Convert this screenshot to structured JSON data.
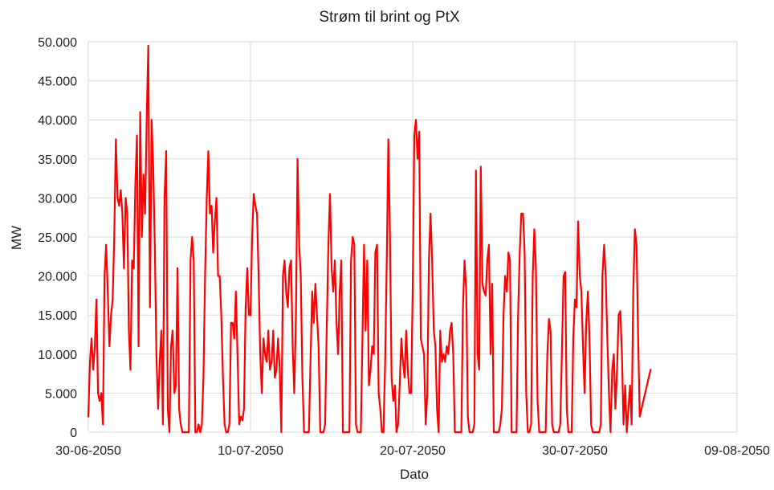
{
  "chart_data": {
    "type": "line",
    "title": "Strøm til brint og PtX",
    "xlabel": "Dato",
    "ylabel": "MW",
    "ylim": [
      0,
      50000
    ],
    "yticks": [
      0,
      5000,
      10000,
      15000,
      20000,
      25000,
      30000,
      35000,
      40000,
      45000,
      50000
    ],
    "ytick_labels": [
      "0",
      "5.000",
      "10.000",
      "15.000",
      "20.000",
      "25.000",
      "30.000",
      "35.000",
      "40.000",
      "45.000",
      "50.000"
    ],
    "xlim": [
      "30-06-2050",
      "09-08-2050"
    ],
    "xticks": [
      "30-06-2050",
      "10-07-2050",
      "20-07-2050",
      "30-07-2050",
      "09-08-2050"
    ],
    "grid": true,
    "colors": {
      "series": "#ff0000",
      "grid": "#d9d9d9"
    },
    "series": [
      {
        "x": [
          "30-06-2050",
          "01-07-2050",
          "02-07-2050",
          "03-07-2050",
          "04-07-2050",
          "05-07-2050",
          "06-07-2050",
          "07-07-2050",
          "08-07-2050",
          "09-07-2050",
          "10-07-2050",
          "11-07-2050",
          "12-07-2050",
          "13-07-2050",
          "14-07-2050",
          "15-07-2050",
          "16-07-2050",
          "17-07-2050",
          "18-07-2050",
          "19-07-2050",
          "20-07-2050",
          "21-07-2050",
          "22-07-2050",
          "23-07-2050",
          "24-07-2050",
          "25-07-2050",
          "26-07-2050",
          "27-07-2050",
          "28-07-2050",
          "29-07-2050",
          "30-07-2050",
          "31-07-2050",
          "01-08-2050",
          "02-08-2050",
          "03-08-2050",
          "04-08-2050",
          "05-08-2050",
          "06-08-2050",
          "07-08-2050",
          "08-08-2050",
          "09-08-2050"
        ],
        "y_profile": [
          [
            2000,
            9000,
            12000,
            8000,
            11000,
            17000,
            5000,
            4000,
            5000,
            1000
          ],
          [
            20000,
            24000,
            18000,
            11000,
            15000,
            17000,
            25000,
            37500,
            30000,
            29000
          ],
          [
            31000,
            28000,
            21000,
            30000,
            28000,
            13000,
            8000,
            22000,
            21000,
            32000
          ],
          [
            38000,
            11000,
            41000,
            25000,
            33000,
            28000,
            40000,
            49500,
            16000,
            40000
          ],
          [
            34000,
            24000,
            10000,
            3000,
            9000,
            13000,
            1000,
            30000,
            36000,
            3000
          ],
          [
            0,
            11000,
            13000,
            5000,
            6000,
            21000,
            3000,
            1000,
            0,
            0
          ],
          [
            0,
            0,
            0,
            22000,
            25000,
            22000,
            0,
            0,
            1000,
            0
          ],
          [
            1000,
            7000,
            20000,
            30000,
            36000,
            28000,
            29000,
            23000,
            27000,
            30000
          ],
          [
            20000,
            20000,
            15000,
            7000,
            1000,
            0,
            0,
            1000,
            14000,
            14000
          ],
          [
            12000,
            18000,
            10000,
            1000,
            2000,
            1500,
            3000,
            16000,
            21000,
            15000
          ],
          [
            15000,
            25000,
            30500,
            29000,
            28000,
            20000,
            10000,
            5000,
            12000,
            10000
          ],
          [
            9000,
            13000,
            8000,
            9000,
            13000,
            7000,
            8000,
            12000,
            8000,
            0
          ],
          [
            20000,
            22000,
            18000,
            16000,
            21000,
            22000,
            11000,
            5000,
            15000,
            35000
          ],
          [
            24000,
            20000,
            7000,
            0,
            0,
            0,
            0,
            9000,
            18000,
            14000
          ],
          [
            19000,
            15000,
            11000,
            0,
            0,
            0,
            1000,
            13000,
            24000,
            30500
          ],
          [
            21000,
            18000,
            22000,
            14000,
            10000,
            18000,
            22000,
            0,
            0,
            0
          ],
          [
            0,
            0,
            22000,
            25000,
            24000,
            1000,
            0,
            0,
            0,
            12000
          ],
          [
            24000,
            13000,
            22000,
            6000,
            8000,
            11000,
            10000,
            23000,
            24000,
            5000
          ],
          [
            3000,
            0,
            0,
            9000,
            22000,
            37500,
            25000,
            7000,
            4000,
            6000
          ],
          [
            0,
            1000,
            6000,
            12000,
            9000,
            7000,
            13000,
            8000,
            5000,
            5000
          ],
          [
            18000,
            38000,
            40000,
            35000,
            38500,
            12000,
            11000,
            10000,
            1000,
            5000
          ],
          [
            22000,
            28000,
            22000,
            13000,
            11000,
            3000,
            0,
            13000,
            9000,
            10000
          ],
          [
            9000,
            11000,
            10000,
            13000,
            14000,
            10000,
            0,
            0,
            0,
            0
          ],
          [
            0,
            16000,
            22000,
            18000,
            2000,
            0,
            0,
            0,
            1000,
            33500
          ],
          [
            10000,
            8000,
            34000,
            19000,
            18000,
            17500,
            22000,
            24000,
            10000,
            19000
          ],
          [
            0,
            0,
            0,
            0,
            1000,
            3000,
            15000,
            20000,
            18000,
            23000
          ],
          [
            22000,
            0,
            0,
            0,
            0,
            15000,
            23000,
            28000,
            28000,
            23000
          ],
          [
            5000,
            0,
            0,
            1000,
            20000,
            26000,
            21000,
            4000,
            0,
            0
          ],
          [
            0,
            0,
            0,
            10000,
            14500,
            13000,
            1000,
            0,
            0,
            0
          ],
          [
            0,
            1000,
            10000,
            20000,
            20500,
            3000,
            0,
            0,
            0,
            12000
          ],
          [
            17000,
            16000,
            27000,
            20000,
            18000,
            11000,
            5000,
            14000,
            18000,
            12000
          ],
          [
            1000,
            0,
            0,
            0,
            0,
            0,
            1000,
            20000,
            24000,
            20000
          ],
          [
            12000,
            5000,
            0,
            8000,
            10000,
            3000,
            8000,
            15000,
            15500,
            10000
          ],
          [
            1000,
            6000,
            0,
            3000,
            6000,
            1000,
            18000,
            26000,
            24000,
            12000
          ],
          [
            2000,
            5000,
            8000
          ]
        ]
      }
    ]
  }
}
